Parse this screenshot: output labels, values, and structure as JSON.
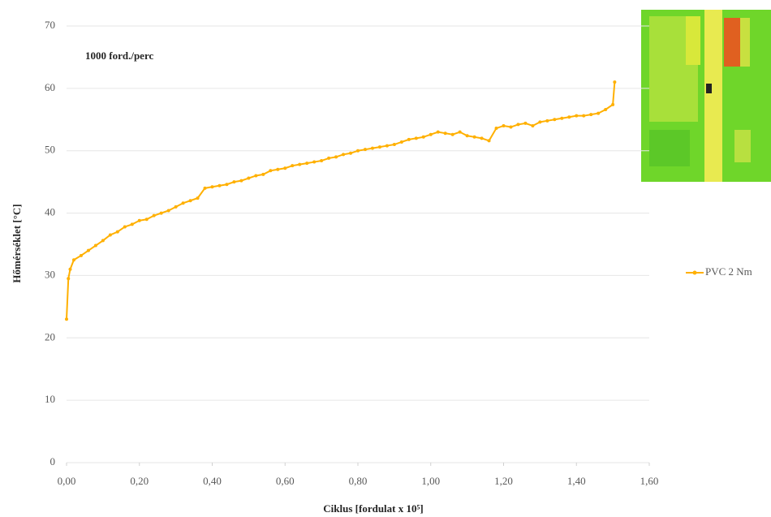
{
  "chart_data": {
    "type": "line",
    "annotation": "1000 ford./perc",
    "x_label": "Ciklus [fordulat x 10⁵]",
    "y_label": "Hőmérséklet [°C]",
    "x": [
      0,
      0.005,
      0.01,
      0.02,
      0.04,
      0.06,
      0.08,
      0.1,
      0.12,
      0.14,
      0.16,
      0.18,
      0.2,
      0.22,
      0.24,
      0.26,
      0.28,
      0.3,
      0.32,
      0.34,
      0.36,
      0.38,
      0.4,
      0.42,
      0.44,
      0.46,
      0.48,
      0.5,
      0.52,
      0.54,
      0.56,
      0.58,
      0.6,
      0.62,
      0.64,
      0.66,
      0.68,
      0.7,
      0.72,
      0.74,
      0.76,
      0.78,
      0.8,
      0.82,
      0.84,
      0.86,
      0.88,
      0.9,
      0.92,
      0.94,
      0.96,
      0.98,
      1.0,
      1.02,
      1.04,
      1.06,
      1.08,
      1.1,
      1.12,
      1.14,
      1.16,
      1.18,
      1.2,
      1.22,
      1.24,
      1.26,
      1.28,
      1.3,
      1.32,
      1.34,
      1.36,
      1.38,
      1.4,
      1.42,
      1.44,
      1.46,
      1.48,
      1.5,
      1.505
    ],
    "series": [
      {
        "name": "PVC 2 Nm",
        "color": "#ffb000",
        "values": [
          23,
          29.5,
          31,
          32.5,
          33.2,
          34,
          34.8,
          35.6,
          36.5,
          37,
          37.8,
          38.2,
          38.8,
          39,
          39.6,
          40,
          40.4,
          41,
          41.6,
          42,
          42.4,
          44,
          44.2,
          44.4,
          44.6,
          45,
          45.2,
          45.6,
          46,
          46.2,
          46.8,
          47,
          47.2,
          47.6,
          47.8,
          48,
          48.2,
          48.4,
          48.8,
          49,
          49.4,
          49.6,
          50,
          50.2,
          50.4,
          50.6,
          50.8,
          51,
          51.4,
          51.8,
          52,
          52.2,
          52.6,
          53,
          52.8,
          52.6,
          53,
          52.4,
          52.2,
          52,
          51.6,
          53.6,
          54,
          53.8,
          54.2,
          54.4,
          54,
          54.6,
          54.8,
          55,
          55.2,
          55.4,
          55.6,
          55.6,
          55.8,
          56,
          56.6,
          57.4,
          61
        ]
      }
    ],
    "xlim": [
      0,
      1.6
    ],
    "xticks": [
      {
        "value": 0,
        "label": "0,00"
      },
      {
        "value": 0.2,
        "label": "0,20"
      },
      {
        "value": 0.4,
        "label": "0,40"
      },
      {
        "value": 0.6,
        "label": "0,60"
      },
      {
        "value": 0.8,
        "label": "0,80"
      },
      {
        "value": 1.0,
        "label": "1,00"
      },
      {
        "value": 1.2,
        "label": "1,20"
      },
      {
        "value": 1.4,
        "label": "1,40"
      },
      {
        "value": 1.6,
        "label": "1,60"
      }
    ],
    "ylim": [
      0,
      70
    ],
    "yticks": [
      0,
      10,
      20,
      30,
      40,
      50,
      60,
      70
    ],
    "grid": true,
    "legend": "right"
  }
}
